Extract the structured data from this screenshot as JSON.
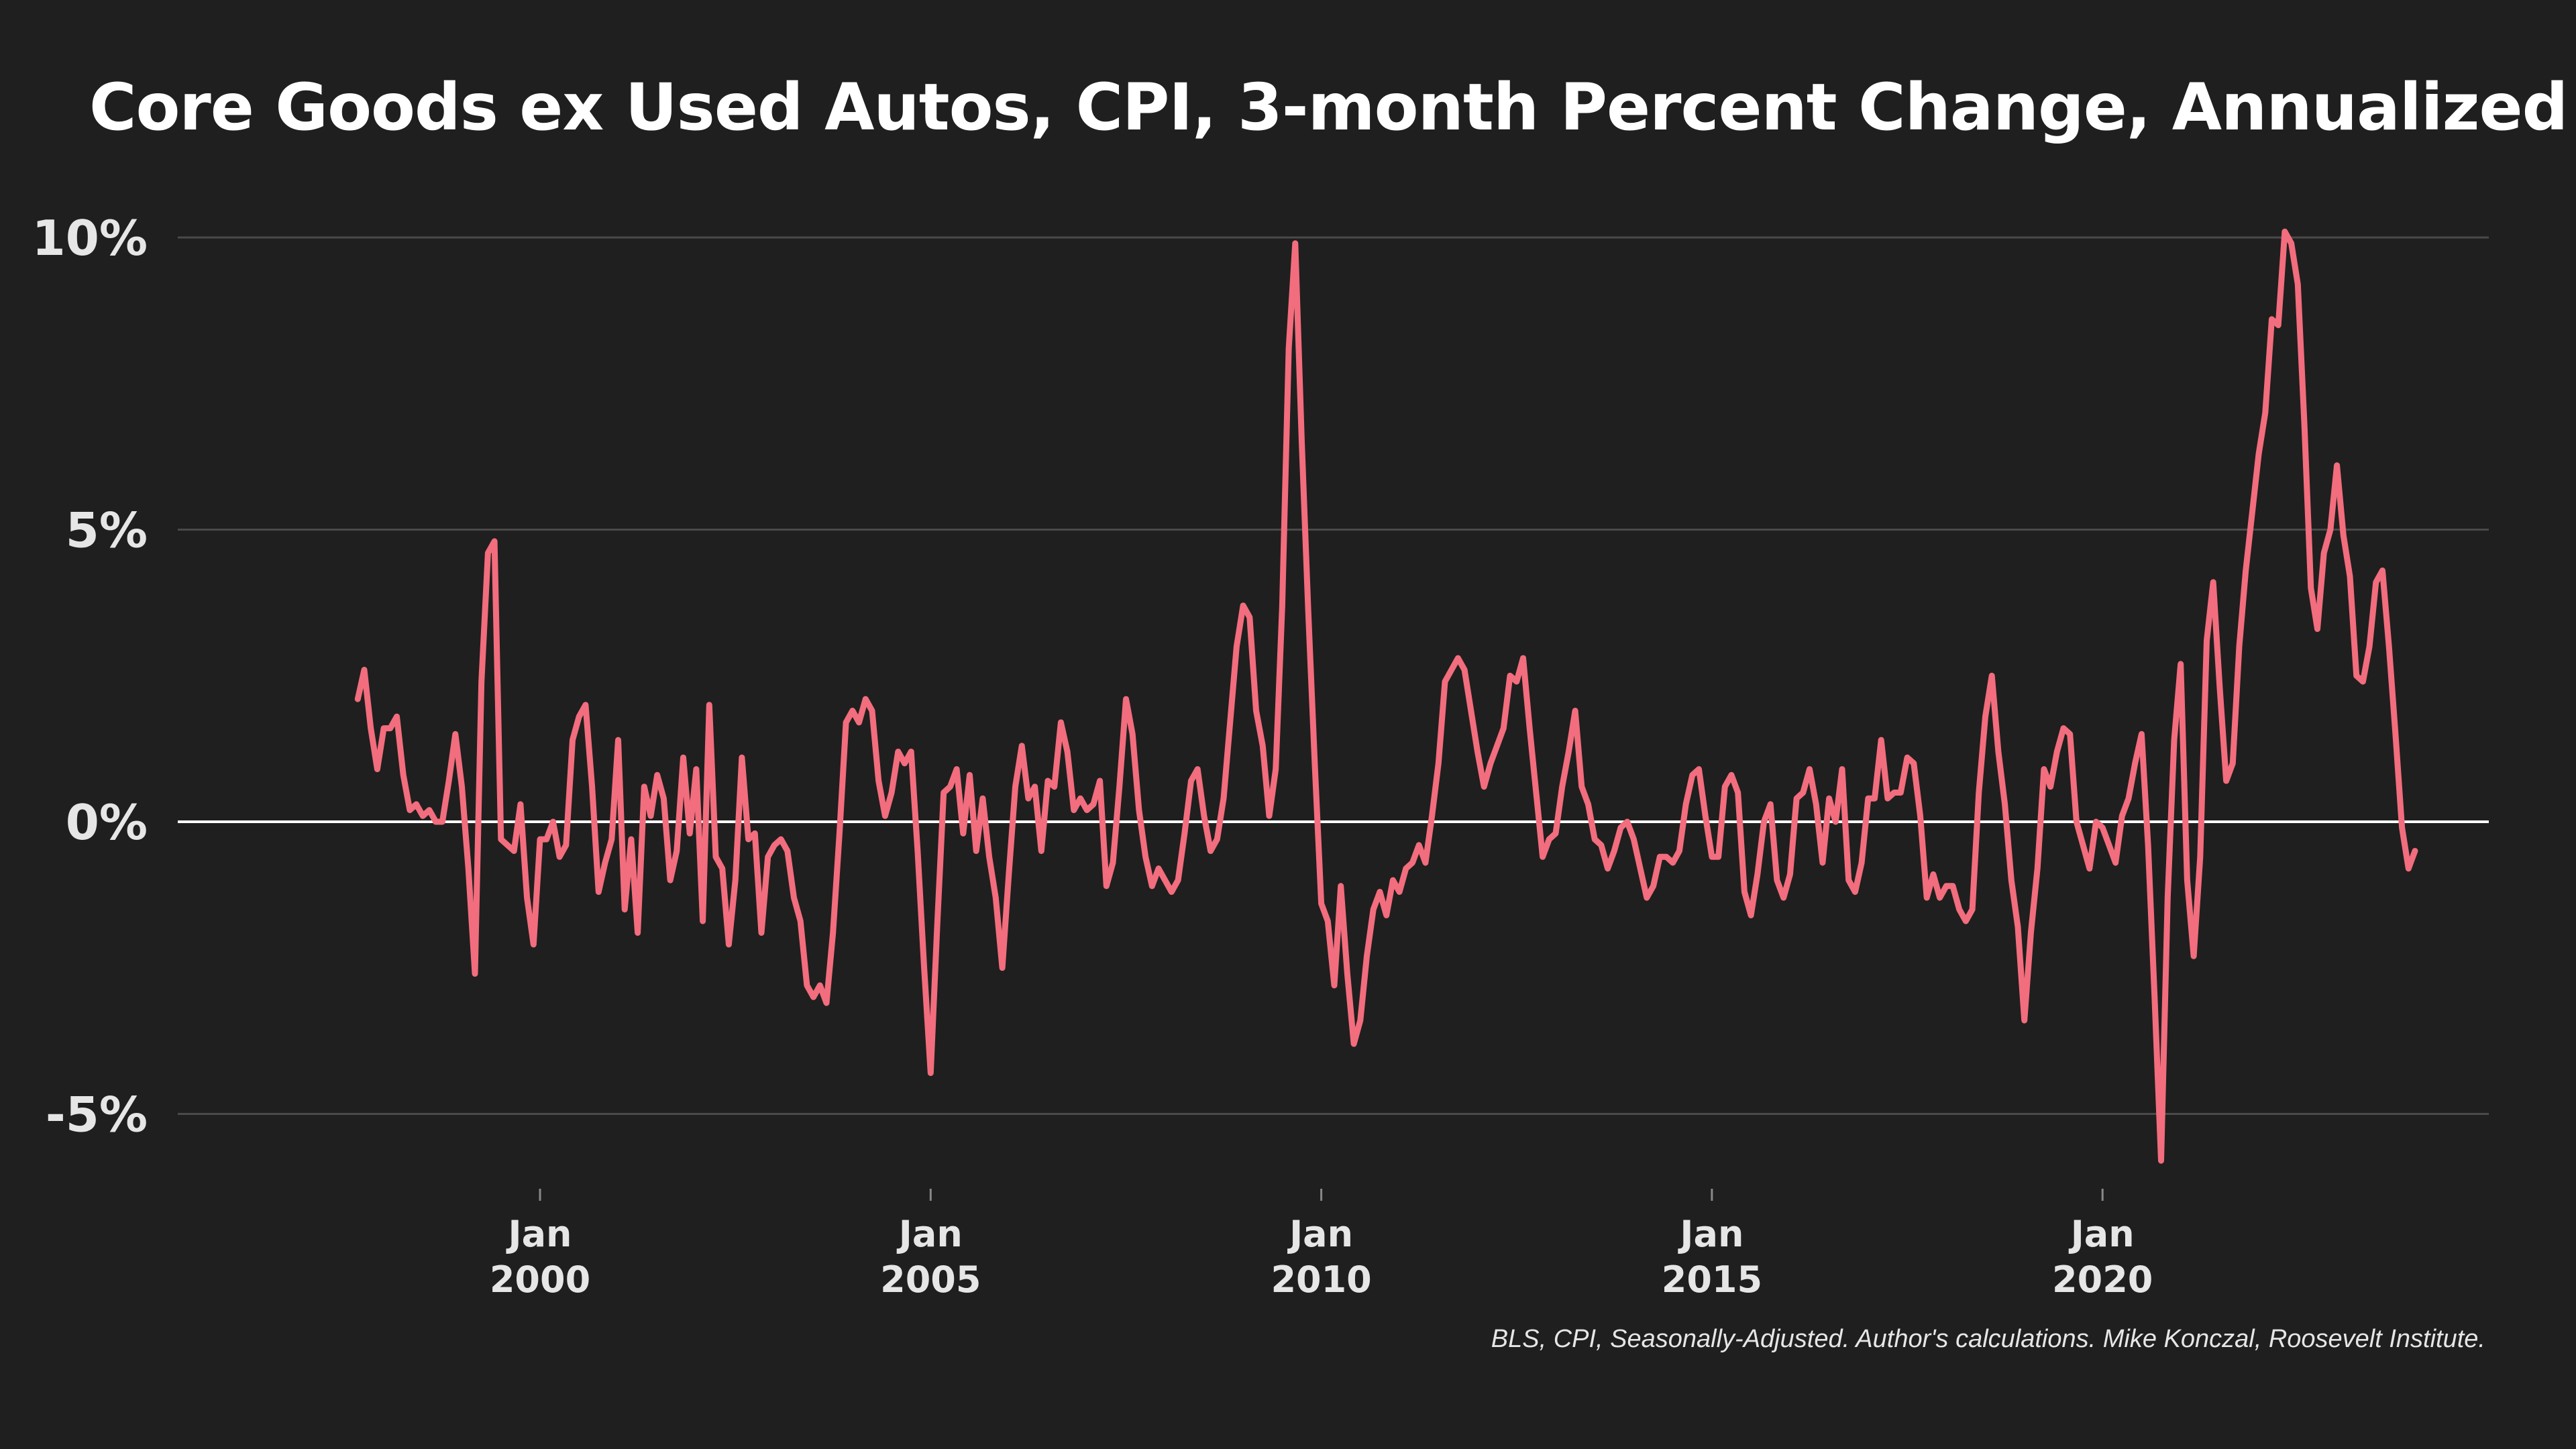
{
  "title": "Core Goods ex Used Autos, CPI, 3-month Percent Change, Annualized",
  "caption": "BLS, CPI, Seasonally-Adjusted. Author's calculations. Mike Konczal, Roosevelt Institute.",
  "colors": {
    "background": "#1f1f1f",
    "line": "#f26d7d",
    "grid": "#4a4a4a",
    "zero_line": "#ffffff",
    "text": "#e6e6e6"
  },
  "chart_data": {
    "type": "line",
    "title": "Core Goods ex Used Autos, CPI, 3-month Percent Change, Annualized",
    "xlabel": "",
    "ylabel": "",
    "grid": true,
    "ylim": [
      -6.5,
      10.5
    ],
    "xlim": [
      "1996-11",
      "2024-09"
    ],
    "y_ticks": [
      {
        "value": -5,
        "label": "-5%"
      },
      {
        "value": 0,
        "label": "0%"
      },
      {
        "value": 5,
        "label": "5%"
      },
      {
        "value": 10,
        "label": "10%"
      }
    ],
    "x_ticks": [
      {
        "date": "2000-01",
        "label": [
          "Jan",
          "2000"
        ]
      },
      {
        "date": "2005-01",
        "label": [
          "Jan",
          "2005"
        ]
      },
      {
        "date": "2010-01",
        "label": [
          "Jan",
          "2010"
        ]
      },
      {
        "date": "2015-01",
        "label": [
          "Jan",
          "2015"
        ]
      },
      {
        "date": "2020-01",
        "label": [
          "Jan",
          "2020"
        ]
      }
    ],
    "series": [
      {
        "start": "1997-09",
        "frequency": "monthly",
        "values": [
          2.1,
          2.6,
          1.6,
          0.9,
          1.6,
          1.6,
          1.8,
          0.8,
          0.2,
          0.3,
          0.1,
          0.2,
          0.0,
          0.0,
          0.7,
          1.5,
          0.6,
          -0.8,
          -2.6,
          2.4,
          4.6,
          4.8,
          -0.3,
          -0.4,
          -0.5,
          0.3,
          -1.3,
          -2.1,
          -0.3,
          -0.3,
          0.0,
          -0.6,
          -0.4,
          1.4,
          1.8,
          2.0,
          0.6,
          -1.2,
          -0.7,
          -0.3,
          1.4,
          -1.5,
          -0.3,
          -1.9,
          0.6,
          0.1,
          0.8,
          0.4,
          -1.0,
          -0.5,
          1.1,
          -0.2,
          0.9,
          -1.7,
          2.0,
          -0.6,
          -0.8,
          -2.1,
          -1.0,
          1.1,
          -0.3,
          -0.2,
          -1.9,
          -0.6,
          -0.4,
          -0.3,
          -0.5,
          -1.3,
          -1.7,
          -2.8,
          -3.0,
          -2.8,
          -3.1,
          -1.9,
          -0.2,
          1.7,
          1.9,
          1.7,
          2.1,
          1.9,
          0.7,
          0.1,
          0.5,
          1.2,
          1.0,
          1.2,
          -0.5,
          -2.5,
          -4.3,
          -1.8,
          0.5,
          0.6,
          0.9,
          -0.2,
          0.8,
          -0.5,
          0.4,
          -0.6,
          -1.3,
          -2.5,
          -0.9,
          0.6,
          1.3,
          0.4,
          0.6,
          -0.5,
          0.7,
          0.6,
          1.7,
          1.2,
          0.2,
          0.4,
          0.2,
          0.3,
          0.7,
          -1.1,
          -0.7,
          0.6,
          2.1,
          1.5,
          0.2,
          -0.6,
          -1.1,
          -0.8,
          -1.0,
          -1.2,
          -1.0,
          -0.2,
          0.7,
          0.9,
          0.1,
          -0.5,
          -0.3,
          0.4,
          1.7,
          3.0,
          3.7,
          3.5,
          1.9,
          1.3,
          0.1,
          0.9,
          3.7,
          8.1,
          9.9,
          6.5,
          3.6,
          1.0,
          -1.4,
          -1.7,
          -2.8,
          -1.1,
          -2.6,
          -3.8,
          -3.4,
          -2.3,
          -1.5,
          -1.2,
          -1.6,
          -1.0,
          -1.2,
          -0.8,
          -0.7,
          -0.4,
          -0.7,
          0.1,
          1.0,
          2.4,
          2.6,
          2.8,
          2.6,
          1.9,
          1.2,
          0.6,
          1.0,
          1.3,
          1.6,
          2.5,
          2.4,
          2.8,
          1.6,
          0.5,
          -0.6,
          -0.3,
          -0.2,
          0.6,
          1.2,
          1.9,
          0.6,
          0.3,
          -0.3,
          -0.4,
          -0.8,
          -0.5,
          -0.1,
          0.0,
          -0.3,
          -0.8,
          -1.3,
          -1.1,
          -0.6,
          -0.6,
          -0.7,
          -0.5,
          0.3,
          0.8,
          0.9,
          0.1,
          -0.6,
          -0.6,
          0.6,
          0.8,
          0.5,
          -1.2,
          -1.6,
          -0.9,
          0.0,
          0.3,
          -1.0,
          -1.3,
          -0.9,
          0.4,
          0.5,
          0.9,
          0.3,
          -0.7,
          0.4,
          0.0,
          0.9,
          -1.0,
          -1.2,
          -0.7,
          0.4,
          0.4,
          1.4,
          0.4,
          0.5,
          0.5,
          1.1,
          1.0,
          0.1,
          -1.3,
          -0.9,
          -1.3,
          -1.1,
          -1.1,
          -1.5,
          -1.7,
          -1.5,
          0.5,
          1.8,
          2.5,
          1.2,
          0.3,
          -1.0,
          -1.8,
          -3.4,
          -1.9,
          -0.8,
          0.9,
          0.6,
          1.2,
          1.6,
          1.5,
          0.0,
          -0.4,
          -0.8,
          0.0,
          -0.1,
          -0.4,
          -0.7,
          0.1,
          0.4,
          1.0,
          1.5,
          -0.4,
          -3.0,
          -5.8,
          -1.3,
          1.4,
          2.7,
          -1.0,
          -2.3,
          -0.6,
          3.1,
          4.1,
          2.3,
          0.7,
          1.0,
          3.0,
          4.3,
          5.3,
          6.3,
          7.0,
          8.6,
          8.5,
          10.1,
          9.9,
          9.2,
          6.8,
          4.0,
          3.3,
          4.6,
          5.0,
          6.1,
          4.9,
          4.2,
          2.5,
          2.4,
          3.0,
          4.1,
          4.3,
          3.0,
          1.5,
          -0.1,
          -0.8,
          -0.5
        ]
      }
    ]
  }
}
